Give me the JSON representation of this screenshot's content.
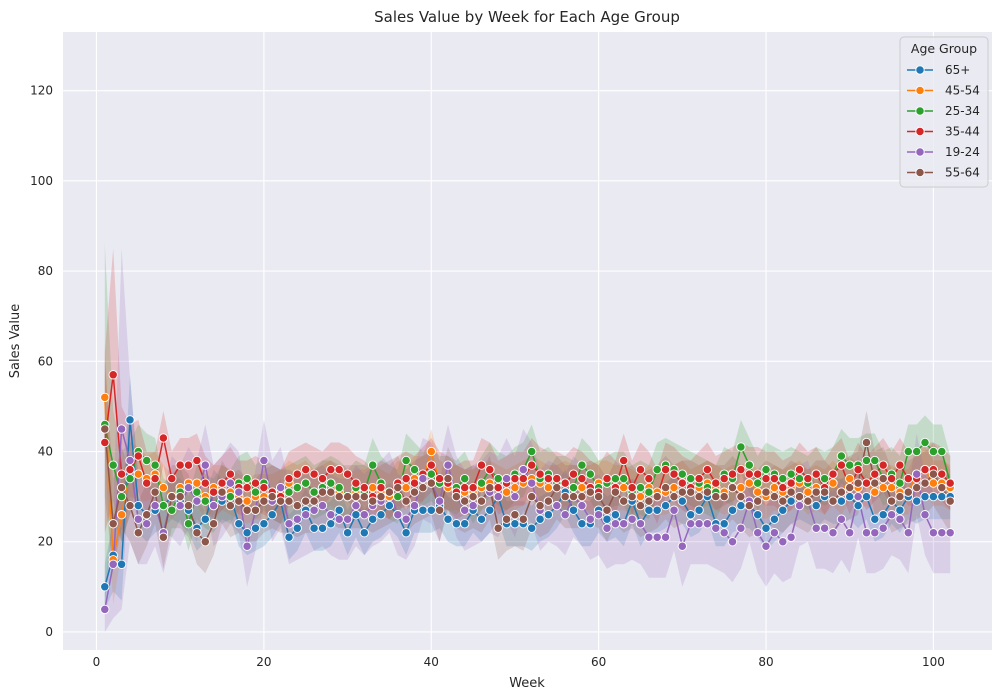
{
  "chart_data": {
    "type": "line",
    "title": "Sales Value by Week for Each Age Group",
    "xlabel": "Week",
    "ylabel": "Sales Value",
    "xlim": [
      -4,
      107
    ],
    "ylim": [
      -4,
      133
    ],
    "xticks": [
      0,
      20,
      40,
      60,
      80,
      100
    ],
    "yticks": [
      0,
      20,
      40,
      60,
      80,
      100,
      120
    ],
    "grid": true,
    "legend": {
      "title": "Age Group",
      "placement": "top-right"
    },
    "x": {
      "start": 1,
      "end": 102
    },
    "series": [
      {
        "name": "65+",
        "color": "#1f77b4",
        "values": [
          10,
          17,
          15,
          47,
          28,
          26,
          27,
          28,
          30,
          29,
          27,
          23,
          25,
          31,
          29,
          30,
          24,
          22,
          23,
          24,
          26,
          29,
          21,
          23,
          27,
          23,
          23,
          24,
          27,
          22,
          26,
          22,
          25,
          26,
          28,
          26,
          22,
          27,
          27,
          27,
          28,
          25,
          24,
          24,
          27,
          25,
          27,
          30,
          24,
          24,
          24,
          23,
          25,
          26,
          28,
          31,
          27,
          24,
          24,
          27,
          25,
          26,
          24,
          29,
          24,
          27,
          27,
          28,
          30,
          29,
          26,
          27,
          30,
          24,
          24,
          27,
          28,
          28,
          26,
          23,
          25,
          27,
          29,
          30,
          29,
          28,
          30,
          29,
          29,
          30,
          28,
          30,
          25,
          26,
          29,
          27,
          30,
          29,
          30,
          30,
          30,
          30
        ],
        "ci": [
          5,
          8,
          8,
          10,
          6,
          6,
          5,
          5,
          5,
          5,
          5,
          5,
          5,
          5,
          5,
          5,
          5,
          5,
          5,
          5,
          5,
          5,
          5,
          5,
          5,
          5,
          5,
          5,
          5,
          5,
          5,
          5,
          5,
          5,
          5,
          5,
          5,
          5,
          5,
          5,
          5,
          5,
          5,
          5,
          5,
          5,
          5,
          5,
          5,
          5,
          5,
          5,
          5,
          5,
          5,
          5,
          5,
          5,
          5,
          5,
          5,
          5,
          5,
          5,
          5,
          5,
          5,
          5,
          5,
          5,
          5,
          5,
          5,
          5,
          5,
          5,
          5,
          5,
          5,
          5,
          5,
          5,
          5,
          5,
          5,
          5,
          5,
          5,
          5,
          5,
          5,
          5,
          5,
          5,
          5,
          5,
          5,
          5,
          5,
          5,
          5,
          5
        ]
      },
      {
        "name": "45-54",
        "color": "#ff7f0e",
        "values": [
          52,
          16,
          26,
          36,
          35,
          34,
          35,
          32,
          30,
          32,
          33,
          33,
          30,
          32,
          32,
          31,
          30,
          29,
          30,
          30,
          30,
          31,
          33,
          32,
          33,
          31,
          32,
          33,
          31,
          30,
          31,
          31,
          32,
          31,
          30,
          33,
          32,
          34,
          34,
          40,
          33,
          32,
          32,
          31,
          31,
          32,
          33,
          32,
          31,
          32,
          33,
          34,
          33,
          32,
          32,
          33,
          32,
          32,
          32,
          33,
          33,
          32,
          32,
          31,
          30,
          32,
          31,
          31,
          32,
          33,
          31,
          32,
          33,
          32,
          31,
          32,
          32,
          33,
          31,
          30,
          32,
          31,
          32,
          33,
          31,
          32,
          31,
          33,
          31,
          34,
          32,
          33,
          31,
          32,
          32,
          31,
          31,
          35,
          36,
          33,
          33,
          32
        ],
        "ci": [
          12,
          10,
          8,
          6,
          6,
          5,
          5,
          5,
          5,
          5,
          5,
          5,
          5,
          5,
          5,
          5,
          5,
          5,
          5,
          5,
          5,
          5,
          5,
          5,
          5,
          5,
          5,
          5,
          5,
          5,
          5,
          5,
          5,
          5,
          5,
          5,
          5,
          5,
          5,
          5,
          5,
          5,
          5,
          5,
          5,
          5,
          5,
          5,
          5,
          5,
          5,
          5,
          5,
          5,
          5,
          5,
          5,
          5,
          5,
          5,
          5,
          5,
          5,
          5,
          5,
          5,
          5,
          5,
          5,
          5,
          5,
          5,
          5,
          5,
          5,
          5,
          5,
          5,
          5,
          5,
          5,
          5,
          5,
          5,
          5,
          5,
          5,
          5,
          5,
          5,
          5,
          5,
          5,
          5,
          5,
          5,
          5,
          5,
          5,
          5,
          5,
          5
        ]
      },
      {
        "name": "25-34",
        "color": "#2ca02c",
        "values": [
          46,
          37,
          30,
          34,
          40,
          38,
          37,
          28,
          27,
          31,
          24,
          31,
          29,
          28,
          31,
          30,
          33,
          34,
          31,
          33,
          31,
          30,
          31,
          32,
          33,
          31,
          32,
          33,
          32,
          30,
          32,
          31,
          37,
          33,
          31,
          30,
          38,
          36,
          34,
          35,
          33,
          33,
          32,
          34,
          30,
          33,
          36,
          34,
          33,
          35,
          36,
          40,
          34,
          35,
          33,
          33,
          32,
          37,
          35,
          32,
          33,
          34,
          34,
          31,
          32,
          31,
          36,
          37,
          36,
          35,
          34,
          33,
          32,
          31,
          35,
          34,
          41,
          37,
          33,
          36,
          35,
          34,
          35,
          34,
          33,
          35,
          34,
          35,
          39,
          37,
          37,
          38,
          38,
          34,
          35,
          33,
          40,
          40,
          42,
          40,
          40,
          33
        ],
        "ci": [
          40,
          12,
          10,
          8,
          6,
          6,
          6,
          6,
          6,
          6,
          6,
          6,
          6,
          6,
          6,
          6,
          6,
          6,
          6,
          6,
          6,
          6,
          6,
          6,
          6,
          6,
          6,
          6,
          6,
          6,
          6,
          6,
          6,
          6,
          6,
          6,
          6,
          6,
          6,
          6,
          6,
          6,
          6,
          6,
          6,
          6,
          6,
          6,
          6,
          6,
          6,
          6,
          6,
          6,
          6,
          6,
          6,
          6,
          6,
          6,
          6,
          6,
          6,
          6,
          6,
          6,
          6,
          6,
          6,
          6,
          6,
          6,
          6,
          6,
          6,
          6,
          6,
          6,
          6,
          6,
          6,
          6,
          6,
          6,
          6,
          6,
          6,
          6,
          6,
          6,
          6,
          6,
          6,
          6,
          6,
          6,
          6,
          6,
          6,
          6,
          6,
          6
        ]
      },
      {
        "name": "35-44",
        "color": "#d62728",
        "values": [
          42,
          57,
          35,
          36,
          39,
          33,
          34,
          43,
          34,
          37,
          37,
          38,
          33,
          31,
          33,
          35,
          32,
          32,
          33,
          32,
          31,
          30,
          34,
          35,
          36,
          35,
          34,
          36,
          36,
          35,
          33,
          32,
          30,
          32,
          31,
          33,
          34,
          33,
          35,
          37,
          34,
          33,
          31,
          32,
          32,
          37,
          36,
          32,
          33,
          34,
          34,
          37,
          35,
          34,
          34,
          33,
          35,
          34,
          32,
          31,
          34,
          32,
          38,
          32,
          36,
          34,
          30,
          36,
          35,
          33,
          32,
          34,
          36,
          33,
          34,
          35,
          36,
          35,
          35,
          34,
          34,
          32,
          33,
          36,
          34,
          35,
          32,
          35,
          37,
          32,
          36,
          33,
          35,
          37,
          34,
          37,
          34,
          34,
          36,
          36,
          35,
          33
        ],
        "ci": [
          20,
          28,
          15,
          10,
          8,
          7,
          6,
          6,
          6,
          6,
          6,
          6,
          6,
          6,
          6,
          6,
          6,
          6,
          6,
          6,
          6,
          6,
          6,
          6,
          6,
          6,
          6,
          6,
          6,
          6,
          6,
          6,
          6,
          6,
          6,
          6,
          6,
          6,
          6,
          6,
          6,
          6,
          6,
          6,
          6,
          6,
          6,
          6,
          6,
          6,
          6,
          6,
          6,
          6,
          6,
          6,
          6,
          6,
          6,
          6,
          6,
          6,
          6,
          6,
          6,
          6,
          6,
          6,
          6,
          6,
          6,
          6,
          6,
          6,
          6,
          6,
          6,
          6,
          6,
          6,
          6,
          6,
          6,
          6,
          6,
          6,
          6,
          6,
          6,
          6,
          6,
          6,
          6,
          6,
          6,
          6,
          6,
          6,
          6,
          6,
          6,
          6
        ]
      },
      {
        "name": "19-24",
        "color": "#9467bd",
        "values": [
          5,
          15,
          45,
          38,
          25,
          24,
          28,
          22,
          30,
          28,
          32,
          29,
          37,
          28,
          30,
          33,
          31,
          19,
          27,
          38,
          29,
          32,
          24,
          25,
          26,
          27,
          28,
          26,
          25,
          25,
          28,
          26,
          28,
          29,
          31,
          26,
          25,
          28,
          34,
          33,
          29,
          37,
          30,
          27,
          28,
          29,
          31,
          30,
          34,
          30,
          36,
          33,
          27,
          29,
          28,
          26,
          30,
          28,
          25,
          26,
          23,
          24,
          24,
          25,
          24,
          21,
          21,
          21,
          27,
          19,
          24,
          24,
          24,
          23,
          22,
          20,
          23,
          29,
          22,
          19,
          22,
          20,
          21,
          28,
          29,
          23,
          23,
          22,
          25,
          22,
          30,
          22,
          22,
          23,
          26,
          25,
          22,
          35,
          26,
          22,
          22,
          22
        ],
        "ci": [
          5,
          12,
          40,
          18,
          10,
          9,
          9,
          9,
          9,
          9,
          9,
          9,
          9,
          9,
          9,
          9,
          9,
          9,
          9,
          9,
          9,
          9,
          9,
          9,
          9,
          9,
          9,
          9,
          9,
          9,
          9,
          9,
          9,
          9,
          9,
          9,
          9,
          9,
          9,
          9,
          9,
          9,
          9,
          9,
          9,
          9,
          9,
          9,
          9,
          9,
          9,
          9,
          9,
          9,
          9,
          9,
          9,
          9,
          9,
          9,
          9,
          9,
          9,
          9,
          9,
          9,
          9,
          9,
          9,
          9,
          9,
          9,
          9,
          9,
          9,
          9,
          9,
          9,
          9,
          9,
          9,
          9,
          9,
          9,
          9,
          9,
          9,
          9,
          9,
          9,
          9,
          9,
          9,
          9,
          9,
          9,
          9,
          9,
          9,
          9,
          9,
          9
        ]
      },
      {
        "name": "55-64",
        "color": "#8c564b",
        "values": [
          45,
          24,
          32,
          28,
          22,
          26,
          31,
          21,
          30,
          30,
          28,
          22,
          20,
          24,
          31,
          28,
          29,
          27,
          27,
          29,
          30,
          29,
          29,
          28,
          29,
          29,
          31,
          31,
          30,
          30,
          30,
          30,
          29,
          30,
          31,
          32,
          29,
          31,
          32,
          33,
          27,
          34,
          30,
          29,
          30,
          29,
          32,
          23,
          25,
          26,
          25,
          30,
          28,
          29,
          32,
          30,
          30,
          30,
          31,
          30,
          27,
          31,
          29,
          30,
          28,
          29,
          30,
          32,
          30,
          31,
          31,
          30,
          31,
          30,
          30,
          32,
          30,
          28,
          29,
          31,
          30,
          29,
          31,
          30,
          29,
          31,
          31,
          29,
          31,
          32,
          33,
          42,
          33,
          34,
          29,
          30,
          31,
          32,
          33,
          35,
          32,
          29
        ],
        "ci": [
          15,
          10,
          9,
          8,
          7,
          7,
          7,
          7,
          7,
          7,
          7,
          7,
          7,
          7,
          7,
          7,
          7,
          7,
          7,
          7,
          7,
          7,
          7,
          7,
          7,
          7,
          7,
          7,
          7,
          7,
          7,
          7,
          7,
          7,
          7,
          7,
          7,
          7,
          7,
          7,
          7,
          7,
          7,
          7,
          7,
          7,
          7,
          7,
          7,
          7,
          7,
          7,
          7,
          7,
          7,
          7,
          7,
          7,
          7,
          7,
          7,
          7,
          7,
          7,
          7,
          7,
          7,
          7,
          7,
          7,
          7,
          7,
          7,
          7,
          7,
          7,
          7,
          7,
          7,
          7,
          7,
          7,
          7,
          7,
          7,
          7,
          7,
          7,
          7,
          7,
          7,
          7,
          7,
          7,
          7,
          7,
          7,
          7,
          7,
          7,
          7,
          7
        ]
      }
    ]
  }
}
